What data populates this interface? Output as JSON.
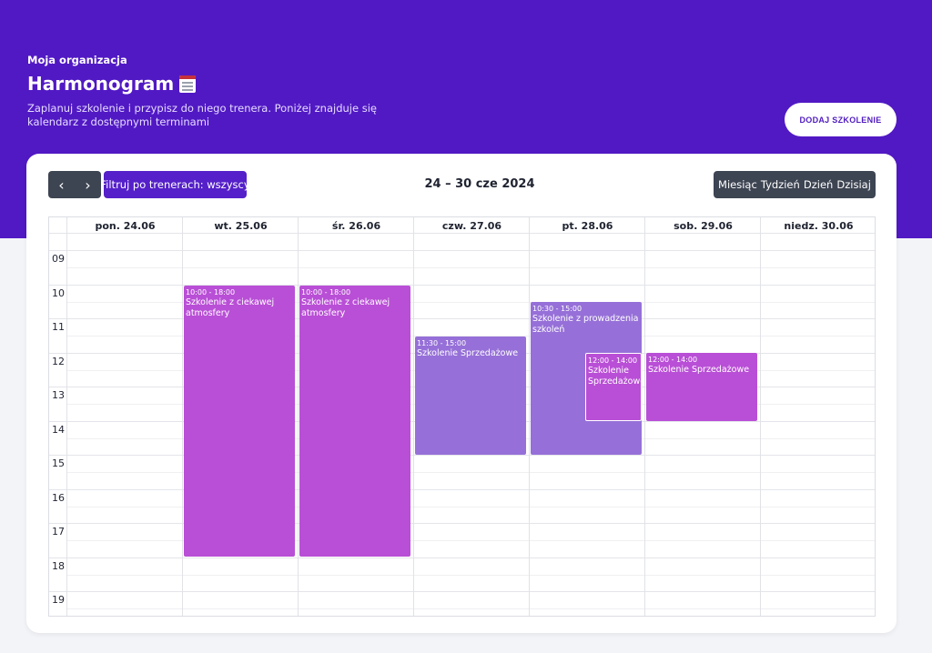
{
  "header": {
    "org": "Moja organizacja",
    "title": "Harmonogram",
    "subtitle": "Zaplanuj szkolenie i przypisz do niego trenera. Poniżej znajduje się kalendarz z dostępnymi terminami",
    "add_button": "DODAJ SZKOLENIE"
  },
  "toolbar": {
    "prev": "‹",
    "next": "›",
    "filter": "Filtruj po trenerach: wszyscy",
    "range": "24 – 30 cze 2024",
    "views": [
      "Miesiąc",
      "Tydzień",
      "Dzień",
      "Dzisiaj"
    ]
  },
  "calendar": {
    "days": [
      "pon. 24.06",
      "wt. 25.06",
      "śr. 26.06",
      "czw. 27.06",
      "pt. 28.06",
      "sob. 29.06",
      "niedz. 30.06"
    ],
    "hours": [
      "09",
      "10",
      "11",
      "12",
      "13",
      "14",
      "15",
      "16",
      "17",
      "18",
      "19"
    ],
    "events": [
      {
        "time": "10:00 - 18:00",
        "title": "Szkolenie z ciekawej atmosfery",
        "color": "#b94fd6"
      },
      {
        "time": "10:00 - 18:00",
        "title": "Szkolenie z ciekawej atmosfery",
        "color": "#b94fd6"
      },
      {
        "time": "11:30 - 15:00",
        "title": "Szkolenie Sprzedażowe",
        "color": "#9670d8"
      },
      {
        "time": "10:30 - 15:00",
        "title": "Szkolenie z prowadzenia szkoleń",
        "color": "#9670d8"
      },
      {
        "time": "12:00 - 14:00",
        "title": "Szkolenie Sprzedażowe",
        "color": "#b94fd6"
      },
      {
        "time": "12:00 - 14:00",
        "title": "Szkolenie Sprzedażowe",
        "color": "#b94fd6"
      }
    ]
  },
  "colors": {
    "brand": "#5119c4",
    "event_pink": "#b94fd6",
    "event_purple": "#9670d8",
    "toolbar_dark": "#3d4452"
  }
}
